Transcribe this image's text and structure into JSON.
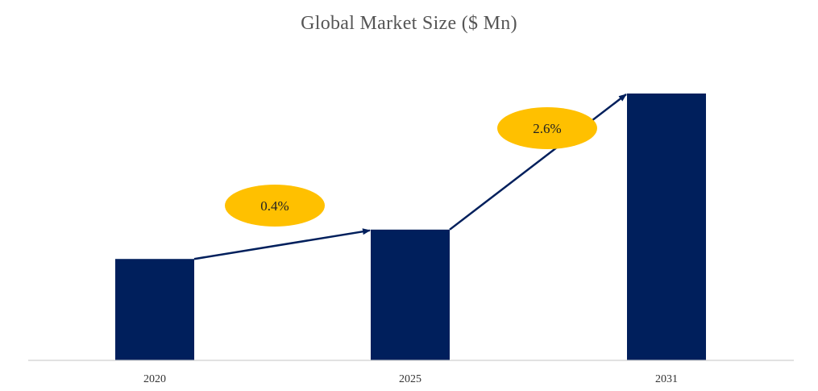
{
  "chart_data": {
    "type": "bar",
    "title": "Global Market Size ($ Mn)",
    "categories": [
      "2020",
      "2025",
      "2031"
    ],
    "values": [
      38,
      49,
      100
    ],
    "ylim": [
      0,
      100
    ],
    "grid": false,
    "annotations": [
      {
        "from": "2020",
        "to": "2025",
        "label": "0.4%"
      },
      {
        "from": "2025",
        "to": "2031",
        "label": "2.6%"
      }
    ]
  },
  "colors": {
    "bar": "#001f5c",
    "arrow": "#001f5c",
    "badge": "#ffc000",
    "axis": "#d0d0d0"
  }
}
